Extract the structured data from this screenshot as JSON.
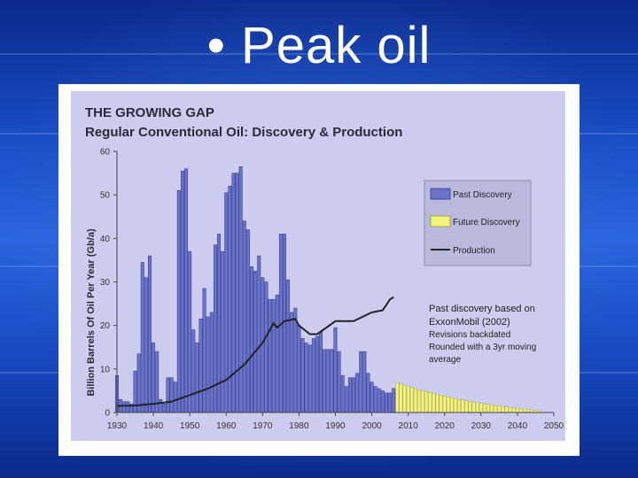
{
  "slide": {
    "title": "• Peak oil"
  },
  "colors": {
    "background": "#1a4fc8",
    "panel": "#ccccee",
    "past_discovery": "#6a74c4",
    "future_discovery": "#f2f27a",
    "production": "#222222"
  },
  "chart_data": {
    "type": "bar",
    "title": "THE GROWING GAP",
    "subtitle": "Regular Conventional Oil: Discovery & Production",
    "ylabel": "Billion Barrels Of Oil Per Year (Gb/a)",
    "xlabel": "",
    "xlim": [
      1930,
      2050
    ],
    "ylim": [
      0,
      60
    ],
    "grid": false,
    "xticks": [
      "1930",
      "1940",
      "1950",
      "1960",
      "1970",
      "1980",
      "1990",
      "2000",
      "2010",
      "2020",
      "2030",
      "2040",
      "2050"
    ],
    "yticks": [
      "0",
      "10",
      "20",
      "30",
      "40",
      "50",
      "60"
    ],
    "legend": {
      "position": "right",
      "entries": [
        "Past Discovery",
        "Future Discovery",
        "Production"
      ]
    },
    "annotations": [
      "Past discovery based on",
      "ExxonMobil (2002)",
      "Revisions backdated",
      "Rounded with a 3yr moving",
      "average"
    ],
    "series": [
      {
        "name": "Past Discovery",
        "type": "bar",
        "x": [
          1930,
          1931,
          1932,
          1933,
          1934,
          1935,
          1936,
          1937,
          1938,
          1939,
          1940,
          1941,
          1942,
          1943,
          1944,
          1945,
          1946,
          1947,
          1948,
          1949,
          1950,
          1951,
          1952,
          1953,
          1954,
          1955,
          1956,
          1957,
          1958,
          1959,
          1960,
          1961,
          1962,
          1963,
          1964,
          1965,
          1966,
          1967,
          1968,
          1969,
          1970,
          1971,
          1972,
          1973,
          1974,
          1975,
          1976,
          1977,
          1978,
          1979,
          1980,
          1981,
          1982,
          1983,
          1984,
          1985,
          1986,
          1987,
          1988,
          1989,
          1990,
          1991,
          1992,
          1993,
          1994,
          1995,
          1996,
          1997,
          1998,
          1999,
          2000,
          2001,
          2002,
          2003,
          2004,
          2005,
          2006
        ],
        "values": [
          8.5,
          3,
          2.5,
          2.5,
          2,
          9.5,
          13.5,
          34.5,
          31,
          36,
          16,
          14,
          3,
          2,
          8,
          8,
          7,
          51,
          55.5,
          56,
          37,
          19,
          16,
          21.5,
          28.5,
          22,
          23,
          38.5,
          41,
          37,
          50.5,
          52,
          55,
          55,
          56.5,
          44,
          42,
          33.5,
          32.5,
          36,
          31,
          30,
          26,
          26,
          27,
          41,
          41,
          30.5,
          23,
          24,
          20,
          17,
          16,
          15.5,
          17,
          17.5,
          18.5,
          14.5,
          14.5,
          14.5,
          19.5,
          14,
          8.5,
          6,
          8,
          8,
          9,
          14,
          14,
          9,
          7,
          6,
          5.5,
          5,
          4.5,
          4.5,
          5.5
        ]
      },
      {
        "name": "Future Discovery",
        "type": "bar",
        "x": [
          2007,
          2008,
          2009,
          2010,
          2011,
          2012,
          2013,
          2014,
          2015,
          2016,
          2017,
          2018,
          2019,
          2020,
          2021,
          2022,
          2023,
          2024,
          2025,
          2026,
          2027,
          2028,
          2029,
          2030,
          2031,
          2032,
          2033,
          2034,
          2035,
          2036,
          2037,
          2038,
          2039,
          2040,
          2041,
          2042,
          2043,
          2044,
          2045,
          2046
        ],
        "values": [
          6.8,
          6.6,
          6.3,
          6.0,
          5.7,
          5.5,
          5.2,
          5.0,
          4.8,
          4.6,
          4.4,
          4.2,
          4.0,
          3.8,
          3.6,
          3.4,
          3.2,
          3.0,
          2.9,
          2.7,
          2.5,
          2.4,
          2.3,
          2.1,
          2.0,
          1.9,
          1.8,
          1.6,
          1.5,
          1.4,
          1.3,
          1.2,
          1.1,
          1.0,
          0.9,
          0.8,
          0.7,
          0.6,
          0.5,
          0.4
        ]
      },
      {
        "name": "Production",
        "type": "line",
        "x": [
          1930,
          1935,
          1940,
          1945,
          1950,
          1955,
          1960,
          1965,
          1970,
          1973,
          1974,
          1976,
          1979,
          1980,
          1983,
          1985,
          1990,
          1995,
          2000,
          2003,
          2005,
          2006
        ],
        "values": [
          1.5,
          1.6,
          2,
          2.5,
          4,
          5.5,
          7.5,
          11,
          16,
          20.5,
          19.5,
          21,
          21.5,
          20,
          18,
          18,
          21,
          21,
          23,
          23.5,
          26,
          26.5
        ]
      }
    ]
  }
}
